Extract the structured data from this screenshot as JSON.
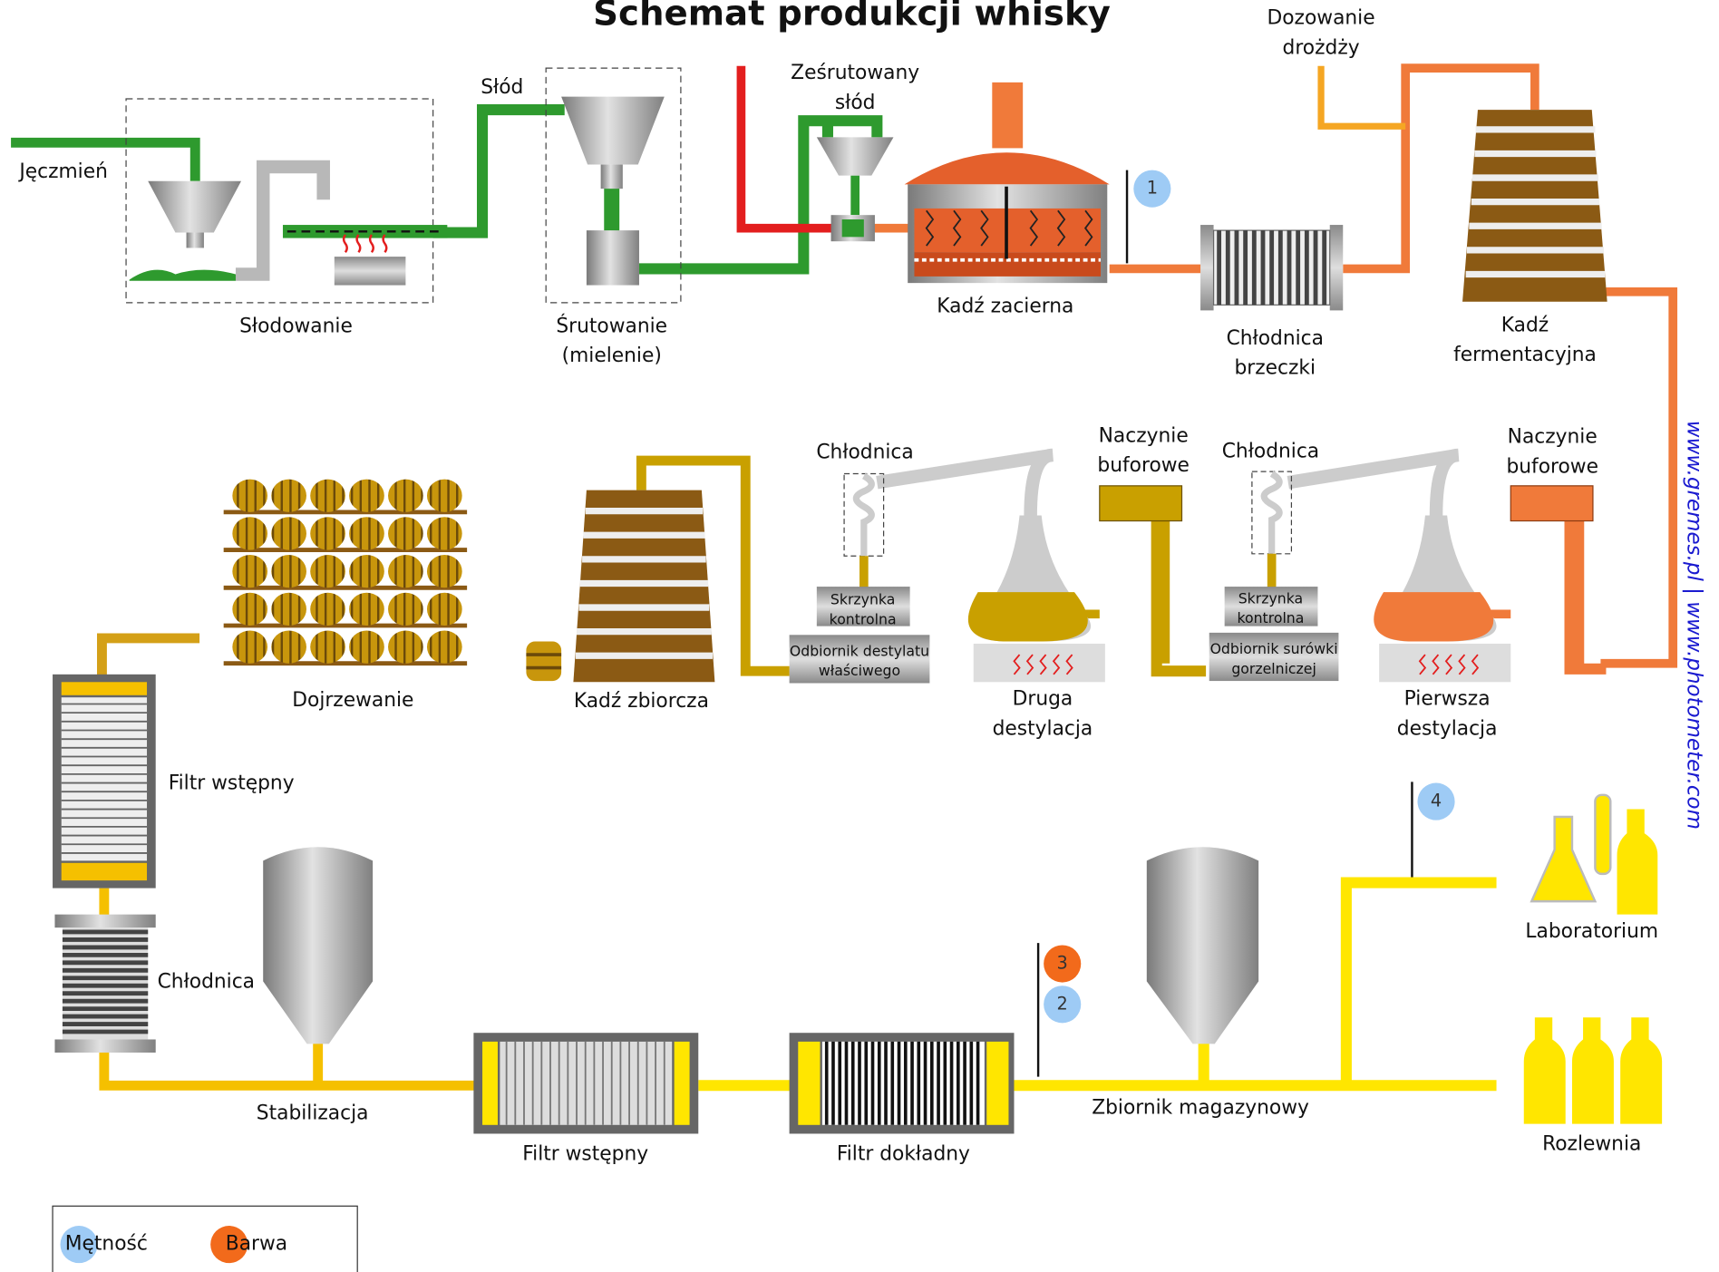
{
  "title": "Schemat produkcji whisky",
  "source": "www.gremes.pl | www.photometer.com",
  "labels": {
    "input": "Jęczmień",
    "malting": "Słodowanie",
    "malt": "Słód",
    "milling": [
      "Śrutowanie",
      "(mielenie)"
    ],
    "milled_malt": [
      "Ześrutowany",
      "słód"
    ],
    "mash_tun": "Kadź zacierna",
    "yeast": [
      "Dozowanie",
      "drożdży"
    ],
    "wort_cooler": [
      "Chłodnica",
      "brzeczki"
    ],
    "fermenter": [
      "Kadź",
      "fermentacyjna"
    ],
    "buffer_1": [
      "Naczynie",
      "buforowe"
    ],
    "buffer_2": [
      "Naczynie",
      "buforowe"
    ],
    "condenser_1": "Chłodnica",
    "condenser_2": "Chłodnica",
    "control_box_1": [
      "Skrzynka",
      "kontrolna"
    ],
    "control_box_2": [
      "Skrzynka",
      "kontrolna"
    ],
    "receiver_1": [
      "Odbiornik surówki",
      "gorzelniczej"
    ],
    "receiver_2": [
      "Odbiornik destylatu",
      "właściwego"
    ],
    "first_distillation": [
      "Pierwsza",
      "destylacja"
    ],
    "second_distillation": [
      "Druga",
      "destylacja"
    ],
    "collection_vat": "Kadź zbiorcza",
    "maturation": "Dojrzewanie",
    "prefilter_1": "Filtr wstępny",
    "cooler": "Chłodnica",
    "stabilization": "Stabilizacja",
    "prefilter_2": "Filtr wstępny",
    "fine_filter": "Filtr dokładny",
    "storage_tank": "Zbiornik magazynowy",
    "laboratory": "Laboratorium",
    "bottling": "Rozlewnia"
  },
  "legend": [
    {
      "label": "Mętność",
      "color": "#9ecbf5",
      "points": [
        "1",
        "2",
        "4"
      ]
    },
    {
      "label": "Barwa",
      "color": "#f26a1b",
      "points": [
        "3"
      ]
    }
  ]
}
